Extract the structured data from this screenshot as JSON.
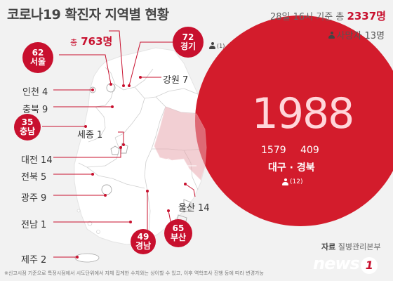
{
  "header": {
    "title": "코로나19 확진자 지역별 현황",
    "asof_prefix": "28일 16시 기준 총",
    "total": "2337명",
    "deaths": "사망자 13명"
  },
  "capital_total": {
    "prefix": "총",
    "value": "763명"
  },
  "regions": {
    "seoul": {
      "count": "62",
      "name": "서울"
    },
    "gyeonggi": {
      "count": "72",
      "name": "경기",
      "deaths": "(1)"
    },
    "incheon": "인천 4",
    "gangwon": "강원 7",
    "chungbuk": "충북 9",
    "chungnam": {
      "count": "35",
      "name": "충남"
    },
    "sejong": "세종 1",
    "daejeon": "대전 14",
    "jeonbuk": "전북 5",
    "gwangju": "광주 9",
    "jeonnam": "전남 1",
    "gyeongnam": {
      "count": "49",
      "name": "경남"
    },
    "busan": {
      "count": "65",
      "name": "부산"
    },
    "ulsan": "울산 14",
    "jeju": "제주 2"
  },
  "daegu_gyeongbuk": {
    "total": "1988",
    "daegu_count": "1579",
    "gyeongbuk_count": "409",
    "names": "대구 · 경북",
    "deaths": "(12)"
  },
  "source": {
    "label": "자료",
    "value": "질병관리본부"
  },
  "footnote": "※신고시점 기준으로 특정시점에서 시도단위에서 자체 집계한 수치와는 상이할 수 있고, 이후 역학조사 진행 등에 따라 변경가능",
  "logo": {
    "text": "news",
    "mark": "1"
  },
  "colors": {
    "accent": "#c8102e",
    "map_fill": "#ffffff",
    "background": "#f2f2f2"
  },
  "icons": [
    "person-icon"
  ]
}
